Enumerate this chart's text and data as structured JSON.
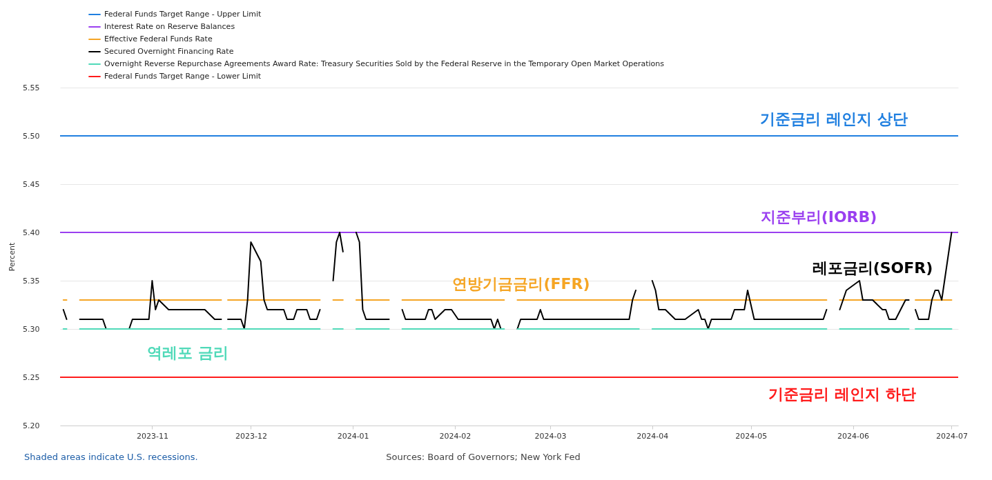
{
  "chart_data": {
    "type": "line",
    "ylabel": "Percent",
    "xlim": [
      "2023-10-04",
      "2024-07-03"
    ],
    "xticks": [
      "2023-11",
      "2023-12",
      "2024-01",
      "2024-02",
      "2024-03",
      "2024-04",
      "2024-05",
      "2024-06",
      "2024-07"
    ],
    "ylim": [
      5.2,
      5.55
    ],
    "yticks": [
      {
        "value": 5.2,
        "label": "5.20"
      },
      {
        "value": 5.25,
        "label": "5.25"
      },
      {
        "value": 5.3,
        "label": "5.30"
      },
      {
        "value": 5.35,
        "label": "5.35"
      },
      {
        "value": 5.4,
        "label": "5.40"
      },
      {
        "value": 5.45,
        "label": "5.45"
      },
      {
        "value": 5.5,
        "label": "5.50"
      },
      {
        "value": 5.55,
        "label": "5.55"
      }
    ],
    "grid": "y",
    "legend": "top left",
    "line_style": "solid",
    "series": [
      {
        "name": "Federal Funds Target Range - Upper Limit",
        "color": "#1f7fe0",
        "x": [
          "2023-10-04",
          "2024-07-03"
        ],
        "values": [
          5.5,
          5.5
        ]
      },
      {
        "name": "Interest Rate on Reserve Balances",
        "color": "#9a3ff0",
        "x": [
          "2023-10-04",
          "2024-07-03"
        ],
        "values": [
          5.4,
          5.4
        ]
      },
      {
        "name": "Effective Federal Funds Rate",
        "color": "#f5a524",
        "x": [
          "2023-10-05",
          "2023-10-06",
          "2023-10-09",
          "2023-10-10",
          "2023-11-22",
          "2023-11-23",
          "2023-11-24",
          "2023-12-22",
          "2023-12-25",
          "2023-12-26",
          "2023-12-29",
          "2024-01-01",
          "2024-01-02",
          "2024-01-12",
          "2024-01-15",
          "2024-01-16",
          "2024-02-16",
          "2024-02-19",
          "2024-02-20",
          "2024-05-24",
          "2024-05-27",
          "2024-05-28",
          "2024-06-18",
          "2024-06-19",
          "2024-06-20",
          "2024-07-01"
        ],
        "values": [
          5.33,
          5.33,
          null,
          5.33,
          5.33,
          null,
          5.33,
          5.33,
          null,
          5.33,
          5.33,
          null,
          5.33,
          5.33,
          null,
          5.33,
          5.33,
          null,
          5.33,
          5.33,
          null,
          5.33,
          5.33,
          null,
          5.33,
          5.33
        ]
      },
      {
        "name": "Secured Overnight Financing Rate",
        "color": "#000000",
        "x": [
          "2023-10-05",
          "2023-10-06",
          "2023-10-09",
          "2023-10-10",
          "2023-10-17",
          "2023-10-18",
          "2023-10-25",
          "2023-10-26",
          "2023-10-31",
          "2023-11-01",
          "2023-11-02",
          "2023-11-03",
          "2023-11-06",
          "2023-11-17",
          "2023-11-20",
          "2023-11-22",
          "2023-11-23",
          "2023-11-24",
          "2023-11-28",
          "2023-11-29",
          "2023-11-30",
          "2023-12-01",
          "2023-12-04",
          "2023-12-05",
          "2023-12-06",
          "2023-12-11",
          "2023-12-12",
          "2023-12-14",
          "2023-12-15",
          "2023-12-18",
          "2023-12-19",
          "2023-12-21",
          "2023-12-22",
          "2023-12-25",
          "2023-12-26",
          "2023-12-27",
          "2023-12-28",
          "2023-12-29",
          "2024-01-01",
          "2024-01-02",
          "2024-01-03",
          "2024-01-04",
          "2024-01-05",
          "2024-01-12",
          "2024-01-15",
          "2024-01-16",
          "2024-01-17",
          "2024-01-23",
          "2024-01-24",
          "2024-01-25",
          "2024-01-26",
          "2024-01-29",
          "2024-01-31",
          "2024-02-02",
          "2024-02-12",
          "2024-02-13",
          "2024-02-14",
          "2024-02-15",
          "2024-02-19",
          "2024-02-20",
          "2024-02-21",
          "2024-02-26",
          "2024-02-27",
          "2024-02-28",
          "2024-03-25",
          "2024-03-26",
          "2024-03-27",
          "2024-03-29",
          "2024-04-01",
          "2024-04-02",
          "2024-04-03",
          "2024-04-05",
          "2024-04-08",
          "2024-04-11",
          "2024-04-15",
          "2024-04-16",
          "2024-04-17",
          "2024-04-18",
          "2024-04-19",
          "2024-04-25",
          "2024-04-26",
          "2024-04-29",
          "2024-04-30",
          "2024-05-02",
          "2024-05-23",
          "2024-05-24",
          "2024-05-27",
          "2024-05-28",
          "2024-05-29",
          "2024-05-30",
          "2024-06-03",
          "2024-06-04",
          "2024-06-07",
          "2024-06-10",
          "2024-06-11",
          "2024-06-12",
          "2024-06-14",
          "2024-06-17",
          "2024-06-18",
          "2024-06-19",
          "2024-06-20",
          "2024-06-21",
          "2024-06-24",
          "2024-06-25",
          "2024-06-26",
          "2024-06-27",
          "2024-06-28",
          "2024-07-01"
        ],
        "values": [
          5.32,
          5.31,
          null,
          5.31,
          5.31,
          5.3,
          5.3,
          5.31,
          5.31,
          5.35,
          5.32,
          5.33,
          5.32,
          5.32,
          5.31,
          5.31,
          null,
          5.31,
          5.31,
          5.3,
          5.33,
          5.39,
          5.37,
          5.33,
          5.32,
          5.32,
          5.31,
          5.31,
          5.32,
          5.32,
          5.31,
          5.31,
          5.32,
          null,
          5.35,
          5.39,
          5.4,
          5.38,
          null,
          5.4,
          5.39,
          5.32,
          5.31,
          5.31,
          null,
          5.32,
          5.31,
          5.31,
          5.32,
          5.32,
          5.31,
          5.32,
          5.32,
          5.31,
          5.31,
          5.3,
          5.31,
          5.3,
          null,
          5.3,
          5.31,
          5.31,
          5.32,
          5.31,
          5.31,
          5.33,
          5.34,
          null,
          5.35,
          5.34,
          5.32,
          5.32,
          5.31,
          5.31,
          5.32,
          5.31,
          5.31,
          5.3,
          5.31,
          5.31,
          5.32,
          5.32,
          5.34,
          5.31,
          5.31,
          5.32,
          null,
          5.32,
          5.33,
          5.34,
          5.35,
          5.33,
          5.33,
          5.32,
          5.32,
          5.31,
          5.31,
          5.33,
          5.33,
          null,
          5.32,
          5.31,
          5.31,
          5.33,
          5.34,
          5.34,
          5.33,
          5.4
        ]
      },
      {
        "name": "Overnight Reverse Repurchase Agreements Award Rate: Treasury Securities Sold by the Federal Reserve in the Temporary Open Market Operations",
        "color": "#4fd9b8",
        "x": [
          "2023-10-05",
          "2023-10-06",
          "2023-10-09",
          "2023-10-10",
          "2023-11-22",
          "2023-11-23",
          "2023-11-24",
          "2023-12-22",
          "2023-12-25",
          "2023-12-26",
          "2023-12-29",
          "2024-01-01",
          "2024-01-02",
          "2024-01-12",
          "2024-01-15",
          "2024-01-16",
          "2024-02-16",
          "2024-02-19",
          "2024-02-20",
          "2024-03-28",
          "2024-03-29",
          "2024-04-01",
          "2024-05-24",
          "2024-05-27",
          "2024-05-28",
          "2024-06-18",
          "2024-06-19",
          "2024-06-20",
          "2024-07-01"
        ],
        "values": [
          5.3,
          5.3,
          null,
          5.3,
          5.3,
          null,
          5.3,
          5.3,
          null,
          5.3,
          5.3,
          null,
          5.3,
          5.3,
          null,
          5.3,
          5.3,
          null,
          5.3,
          5.3,
          null,
          5.3,
          5.3,
          null,
          5.3,
          5.3,
          null,
          5.3,
          5.3
        ]
      },
      {
        "name": "Federal Funds Target Range - Lower Limit",
        "color": "#ff1a1a",
        "x": [
          "2023-10-04",
          "2024-07-03"
        ],
        "values": [
          5.25,
          5.25
        ]
      }
    ],
    "annotations": [
      "기준금리 레인지 상단",
      "지준부리(IORB)",
      "연방기금금리(FFR)",
      "레포금리(SOFR)",
      "역레포 금리",
      "기준금리 레인지 하단",
      "Shaded areas indicate U.S. recessions.",
      "Sources: Board of Governors; New York Fed"
    ]
  }
}
